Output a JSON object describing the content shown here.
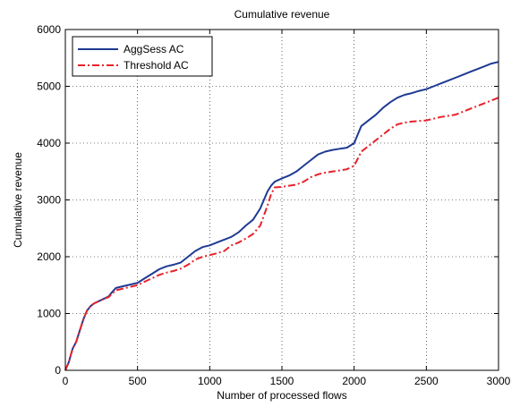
{
  "chart_data": {
    "type": "line",
    "title": "Cumulative revenue",
    "xlabel": "Number of processed flows",
    "ylabel": "Cumulative revenue",
    "xlim": [
      0,
      3000
    ],
    "ylim": [
      0,
      6000
    ],
    "xticks": [
      0,
      500,
      1000,
      1500,
      2000,
      2500,
      3000
    ],
    "yticks": [
      0,
      1000,
      2000,
      3000,
      4000,
      5000,
      6000
    ],
    "grid": true,
    "legend_position": "top-left",
    "series": [
      {
        "name": "AggSess AC",
        "color": "#1f3a93",
        "style": "solid",
        "x": [
          0,
          25,
          50,
          75,
          100,
          125,
          150,
          175,
          200,
          250,
          300,
          325,
          350,
          400,
          450,
          500,
          550,
          600,
          650,
          700,
          750,
          800,
          850,
          900,
          950,
          1000,
          1050,
          1100,
          1150,
          1200,
          1250,
          1300,
          1350,
          1400,
          1425,
          1450,
          1500,
          1550,
          1600,
          1650,
          1700,
          1750,
          1800,
          1850,
          1900,
          1950,
          2000,
          2050,
          2100,
          2150,
          2200,
          2250,
          2300,
          2350,
          2400,
          2450,
          2500,
          2550,
          2600,
          2650,
          2700,
          2750,
          2800,
          2850,
          2900,
          2950,
          3000
        ],
        "values": [
          0,
          150,
          380,
          500,
          700,
          900,
          1050,
          1130,
          1180,
          1240,
          1300,
          1380,
          1450,
          1480,
          1510,
          1540,
          1620,
          1700,
          1780,
          1830,
          1860,
          1900,
          2000,
          2100,
          2170,
          2200,
          2250,
          2300,
          2350,
          2430,
          2550,
          2650,
          2850,
          3150,
          3250,
          3320,
          3380,
          3430,
          3500,
          3600,
          3700,
          3800,
          3850,
          3880,
          3900,
          3920,
          4000,
          4300,
          4400,
          4500,
          4620,
          4720,
          4800,
          4850,
          4880,
          4920,
          4950,
          5000,
          5050,
          5100,
          5150,
          5200,
          5250,
          5300,
          5350,
          5400,
          5430
        ]
      },
      {
        "name": "Threshold AC",
        "color": "#e8222a",
        "style": "dashdot",
        "x": [
          0,
          25,
          50,
          75,
          100,
          125,
          150,
          175,
          200,
          250,
          300,
          325,
          350,
          400,
          450,
          500,
          550,
          600,
          650,
          700,
          750,
          800,
          850,
          900,
          950,
          1000,
          1050,
          1100,
          1150,
          1200,
          1250,
          1300,
          1350,
          1400,
          1425,
          1450,
          1500,
          1550,
          1600,
          1650,
          1700,
          1750,
          1800,
          1850,
          1900,
          1950,
          2000,
          2050,
          2100,
          2150,
          2200,
          2250,
          2300,
          2350,
          2400,
          2450,
          2500,
          2550,
          2600,
          2650,
          2700,
          2750,
          2800,
          2850,
          2900,
          2950,
          3000
        ],
        "values": [
          0,
          150,
          380,
          500,
          700,
          900,
          1050,
          1130,
          1180,
          1240,
          1290,
          1350,
          1410,
          1440,
          1470,
          1500,
          1560,
          1620,
          1680,
          1720,
          1750,
          1790,
          1860,
          1950,
          2000,
          2030,
          2060,
          2100,
          2200,
          2250,
          2320,
          2400,
          2550,
          2900,
          3100,
          3220,
          3230,
          3250,
          3270,
          3320,
          3400,
          3450,
          3480,
          3500,
          3520,
          3540,
          3600,
          3850,
          3950,
          4050,
          4150,
          4250,
          4330,
          4360,
          4380,
          4390,
          4400,
          4430,
          4460,
          4480,
          4500,
          4550,
          4600,
          4650,
          4700,
          4750,
          4800
        ]
      }
    ]
  }
}
